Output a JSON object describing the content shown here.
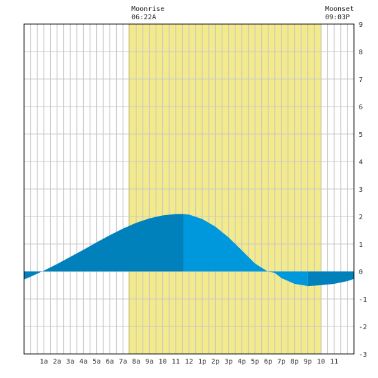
{
  "chart_data": {
    "type": "area",
    "title": "",
    "xlabel": "",
    "ylabel": "",
    "ylim": [
      -3,
      9
    ],
    "xlim": [
      -1.5,
      23.5
    ],
    "yticks": [
      -3,
      -2,
      -1,
      0,
      1,
      2,
      3,
      4,
      5,
      6,
      7,
      8,
      9
    ],
    "x_tick_labels": [
      "1a",
      "2a",
      "3a",
      "4a",
      "5a",
      "6a",
      "7a",
      "8a",
      "9a",
      "10",
      "11",
      "12",
      "1p",
      "2p",
      "3p",
      "4p",
      "5p",
      "6p",
      "7p",
      "8p",
      "9p",
      "10",
      "11"
    ],
    "grid": true,
    "moon_window": {
      "start_hour": 6.37,
      "end_hour": 21.05
    },
    "annotations": [
      {
        "label": "Moonrise",
        "time": "06:22A",
        "hour": 6.37
      },
      {
        "label": "Moonset",
        "time": "09:03P",
        "hour": 21.05
      }
    ],
    "series": [
      {
        "x": [
          -1.5,
          -1,
          0,
          1,
          2,
          3,
          4,
          5,
          6,
          7,
          8,
          9,
          10,
          10.58,
          11,
          12,
          13,
          14,
          15,
          16,
          17,
          17.5,
          18,
          19,
          20,
          21,
          22,
          23,
          23.5
        ],
        "values": [
          -0.29,
          -0.19,
          0.03,
          0.27,
          0.53,
          0.79,
          1.06,
          1.32,
          1.56,
          1.77,
          1.93,
          2.04,
          2.09,
          2.09,
          2.07,
          1.91,
          1.63,
          1.24,
          0.77,
          0.29,
          -0.01,
          -0.05,
          -0.24,
          -0.45,
          -0.53,
          -0.5,
          -0.45,
          -0.35,
          -0.27
        ],
        "fill_rising": "#0081bb",
        "fill_falling": "#0098dc"
      }
    ],
    "colors": {
      "daylight": "#f3ea8b",
      "grid": "#c8c8c8",
      "border": "#000000"
    }
  }
}
